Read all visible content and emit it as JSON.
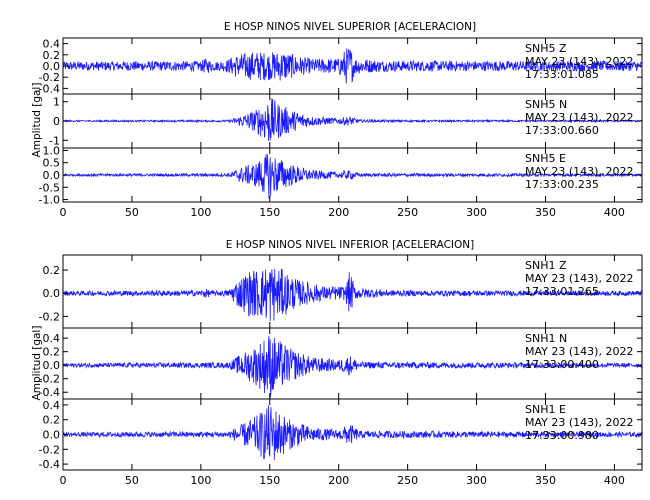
{
  "chart_data": [
    {
      "type": "line",
      "title": "E HOSP NINOS NIVEL SUPERIOR [ACELERACION]",
      "ylabel": "Amplitud [gal]",
      "xlim": [
        0,
        420
      ],
      "xticks": [
        0,
        50,
        100,
        150,
        200,
        250,
        300,
        350,
        400
      ],
      "traces": [
        {
          "station": "SNH5",
          "component": "Z",
          "date": "MAY 23 (143), 2022",
          "time": "17:33:01.085",
          "ylim": [
            -0.5,
            0.5
          ],
          "yticks": [
            "0.4",
            "0.2",
            "0.0",
            "-0.2",
            "-0.4"
          ],
          "ytick_values": [
            0.4,
            0.2,
            0.0,
            -0.2,
            -0.4
          ],
          "envelope": [
            [
              0,
              0.08
            ],
            [
              100,
              0.09
            ],
            [
              103,
              0.14
            ],
            [
              110,
              0.08
            ],
            [
              118,
              0.1
            ],
            [
              125,
              0.2
            ],
            [
              140,
              0.27
            ],
            [
              150,
              0.25
            ],
            [
              160,
              0.28
            ],
            [
              168,
              0.2
            ],
            [
              180,
              0.13
            ],
            [
              200,
              0.14
            ],
            [
              205,
              0.32
            ],
            [
              208,
              0.38
            ],
            [
              212,
              0.15
            ],
            [
              230,
              0.1
            ],
            [
              300,
              0.09
            ],
            [
              420,
              0.09
            ]
          ]
        },
        {
          "station": "SNH5",
          "component": "N",
          "date": "MAY 23 (143), 2022",
          "time": "17:33:00.660",
          "ylim": [
            -1.4,
            1.4
          ],
          "yticks": [
            "1",
            "0",
            "-1"
          ],
          "ytick_values": [
            1,
            0,
            -1
          ],
          "envelope": [
            [
              0,
              0.04
            ],
            [
              120,
              0.05
            ],
            [
              128,
              0.25
            ],
            [
              140,
              0.6
            ],
            [
              150,
              1.3
            ],
            [
              155,
              1.0
            ],
            [
              165,
              0.6
            ],
            [
              180,
              0.25
            ],
            [
              200,
              0.15
            ],
            [
              208,
              0.25
            ],
            [
              215,
              0.08
            ],
            [
              250,
              0.05
            ],
            [
              420,
              0.04
            ]
          ]
        },
        {
          "station": "SNH5",
          "component": "E",
          "date": "MAY 23 (143), 2022",
          "time": "17:33:00.235",
          "ylim": [
            -1.1,
            1.1
          ],
          "yticks": [
            "1.0",
            "0.5",
            "0.0",
            "-0.5",
            "-1.0"
          ],
          "ytick_values": [
            1.0,
            0.5,
            0.0,
            -0.5,
            -1.0
          ],
          "envelope": [
            [
              0,
              0.05
            ],
            [
              120,
              0.06
            ],
            [
              128,
              0.3
            ],
            [
              140,
              0.5
            ],
            [
              150,
              1.0
            ],
            [
              155,
              0.75
            ],
            [
              165,
              0.45
            ],
            [
              180,
              0.2
            ],
            [
              200,
              0.12
            ],
            [
              208,
              0.2
            ],
            [
              215,
              0.07
            ],
            [
              420,
              0.05
            ]
          ]
        }
      ]
    },
    {
      "type": "line",
      "title": "E HOSP NINOS NIVEL INFERIOR [ACELERACION]",
      "ylabel": "Amplitud [gal]",
      "xlim": [
        0,
        420
      ],
      "xticks": [
        0,
        50,
        100,
        150,
        200,
        250,
        300,
        350,
        400
      ],
      "traces": [
        {
          "station": "SNH1",
          "component": "Z",
          "date": "MAY 23 (143), 2022",
          "time": "17:33:01.265",
          "ylim": [
            -0.3,
            0.33
          ],
          "yticks": [
            "0.2",
            "0.0",
            "-0.2"
          ],
          "ytick_values": [
            0.2,
            0.0,
            -0.2
          ],
          "envelope": [
            [
              0,
              0.02
            ],
            [
              100,
              0.025
            ],
            [
              103,
              0.04
            ],
            [
              110,
              0.02
            ],
            [
              120,
              0.03
            ],
            [
              125,
              0.1
            ],
            [
              135,
              0.2
            ],
            [
              145,
              0.22
            ],
            [
              150,
              0.27
            ],
            [
              160,
              0.2
            ],
            [
              170,
              0.12
            ],
            [
              190,
              0.06
            ],
            [
              205,
              0.06
            ],
            [
              208,
              0.2
            ],
            [
              212,
              0.05
            ],
            [
              240,
              0.025
            ],
            [
              420,
              0.02
            ]
          ]
        },
        {
          "station": "SNH1",
          "component": "N",
          "date": "MAY 23 (143), 2022",
          "time": "17:33:00.400",
          "ylim": [
            -0.5,
            0.55
          ],
          "yticks": [
            "0.4",
            "0.2",
            "0.0",
            "-0.2",
            "-0.4"
          ],
          "ytick_values": [
            0.4,
            0.2,
            0.0,
            -0.2,
            -0.4
          ],
          "envelope": [
            [
              0,
              0.03
            ],
            [
              120,
              0.04
            ],
            [
              128,
              0.15
            ],
            [
              140,
              0.3
            ],
            [
              150,
              0.5
            ],
            [
              155,
              0.4
            ],
            [
              165,
              0.25
            ],
            [
              180,
              0.12
            ],
            [
              200,
              0.08
            ],
            [
              208,
              0.15
            ],
            [
              215,
              0.05
            ],
            [
              420,
              0.03
            ]
          ]
        },
        {
          "station": "SNH1",
          "component": "E",
          "date": "MAY 23 (143), 2022",
          "time": "17:33:00.980",
          "ylim": [
            -0.48,
            0.48
          ],
          "yticks": [
            "0.4",
            "0.2",
            "0.0",
            "-0.2",
            "-0.4"
          ],
          "ytick_values": [
            0.4,
            0.2,
            0.0,
            -0.2,
            -0.4
          ],
          "envelope": [
            [
              0,
              0.03
            ],
            [
              120,
              0.04
            ],
            [
              128,
              0.12
            ],
            [
              140,
              0.25
            ],
            [
              150,
              0.42
            ],
            [
              155,
              0.35
            ],
            [
              165,
              0.2
            ],
            [
              180,
              0.1
            ],
            [
              200,
              0.06
            ],
            [
              208,
              0.15
            ],
            [
              215,
              0.05
            ],
            [
              420,
              0.03
            ]
          ]
        }
      ]
    }
  ]
}
